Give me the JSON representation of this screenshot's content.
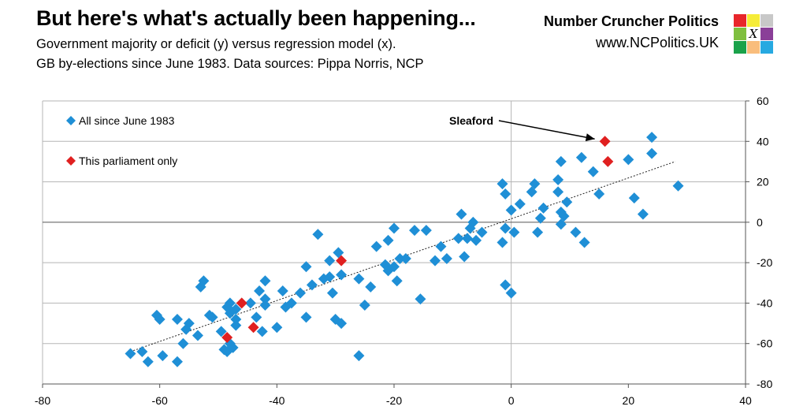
{
  "header": {
    "title": "But here's what's actually been happening...",
    "subtitle_line1": "Government majority or deficit (y) versus regression model (x).",
    "subtitle_line2": "GB by-elections since June 1983. Data sources: Pippa Norris, NCP",
    "brand_name": "Number Cruncher Politics",
    "brand_url": "www.NCPolitics.UK",
    "logo_letter": "X",
    "logo_colors": [
      "#e8262b",
      "#f5ec38",
      "#c8c8c8",
      "#7fbf3f",
      "#ffffff",
      "#8a3f98",
      "#1aa24a",
      "#f9bd7c",
      "#27a9e1"
    ]
  },
  "chart_data": {
    "type": "scatter",
    "xlim": [
      -80,
      40
    ],
    "ylim": [
      -80,
      60
    ],
    "xticks": [
      "-80",
      "-60",
      "-40",
      "-20",
      "0",
      "20",
      "40"
    ],
    "yticks": [
      "60",
      "40",
      "20",
      "0",
      "-20",
      "-40",
      "-60",
      "-80"
    ],
    "xtick_values": [
      -80,
      -60,
      -40,
      -20,
      0,
      20,
      40
    ],
    "ytick_values": [
      60,
      40,
      20,
      0,
      -20,
      -40,
      -60,
      -80
    ],
    "legend": [
      {
        "label": "All since June 1983",
        "color": "#1f8fd6"
      },
      {
        "label": "This parliament only",
        "color": "#e02020"
      }
    ],
    "annotation": {
      "label": "Sleaford",
      "target": [
        16,
        40
      ]
    },
    "trendline": {
      "x": [
        -65,
        28
      ],
      "y": [
        -64,
        30
      ]
    },
    "series": [
      {
        "name": "All since June 1983",
        "color": "#1f8fd6",
        "points": [
          [
            -65,
            -65
          ],
          [
            -63,
            -64
          ],
          [
            -62,
            -69
          ],
          [
            -60.5,
            -46
          ],
          [
            -60,
            -48
          ],
          [
            -59.5,
            -66
          ],
          [
            -57,
            -48
          ],
          [
            -57,
            -69
          ],
          [
            -56,
            -60
          ],
          [
            -55.5,
            -53
          ],
          [
            -55,
            -50
          ],
          [
            -53.5,
            -56
          ],
          [
            -53,
            -32
          ],
          [
            -52.5,
            -29
          ],
          [
            -51.5,
            -46
          ],
          [
            -51,
            -47
          ],
          [
            -49.5,
            -54
          ],
          [
            -49,
            -63
          ],
          [
            -48.5,
            -64
          ],
          [
            -48.5,
            -42
          ],
          [
            -48,
            -40
          ],
          [
            -48,
            -45
          ],
          [
            -48,
            -60
          ],
          [
            -47.5,
            -62
          ],
          [
            -47,
            -43
          ],
          [
            -47,
            -48
          ],
          [
            -47,
            -51
          ],
          [
            -44.5,
            -40
          ],
          [
            -43.5,
            -47
          ],
          [
            -43,
            -34
          ],
          [
            -42.5,
            -54
          ],
          [
            -42,
            -29
          ],
          [
            -42,
            -38
          ],
          [
            -42,
            -41
          ],
          [
            -40,
            -52
          ],
          [
            -39,
            -34
          ],
          [
            -38.5,
            -42
          ],
          [
            -37.5,
            -40
          ],
          [
            -36,
            -35
          ],
          [
            -35,
            -22
          ],
          [
            -35,
            -47
          ],
          [
            -34,
            -31
          ],
          [
            -33,
            -6
          ],
          [
            -32,
            -28
          ],
          [
            -31,
            -27
          ],
          [
            -31,
            -19
          ],
          [
            -30.5,
            -35
          ],
          [
            -30,
            -48
          ],
          [
            -29.5,
            -15
          ],
          [
            -29,
            -50
          ],
          [
            -29,
            -26
          ],
          [
            -26,
            -66
          ],
          [
            -26,
            -28
          ],
          [
            -25,
            -41
          ],
          [
            -24,
            -32
          ],
          [
            -23,
            -12
          ],
          [
            -21.5,
            -21
          ],
          [
            -21,
            -9
          ],
          [
            -21,
            -24
          ],
          [
            -20,
            -3
          ],
          [
            -20,
            -22
          ],
          [
            -19.5,
            -29
          ],
          [
            -19,
            -18
          ],
          [
            -18,
            -18
          ],
          [
            -16.5,
            -4
          ],
          [
            -15.5,
            -38
          ],
          [
            -14.5,
            -4
          ],
          [
            -13,
            -19
          ],
          [
            -12,
            -12
          ],
          [
            -11,
            -18
          ],
          [
            -9,
            -8
          ],
          [
            -8.5,
            4
          ],
          [
            -8,
            -17
          ],
          [
            -7.5,
            -8
          ],
          [
            -7,
            -3
          ],
          [
            -6.5,
            0
          ],
          [
            -6,
            -9
          ],
          [
            -5,
            -5
          ],
          [
            -1.5,
            19
          ],
          [
            -1.5,
            -10
          ],
          [
            -1,
            14
          ],
          [
            -1,
            -3
          ],
          [
            -1,
            -31
          ],
          [
            0,
            6
          ],
          [
            0,
            -35
          ],
          [
            0.5,
            -5
          ],
          [
            1.5,
            9
          ],
          [
            3.5,
            15
          ],
          [
            4,
            19
          ],
          [
            4.5,
            -5
          ],
          [
            5,
            2
          ],
          [
            5.5,
            7
          ],
          [
            8,
            15
          ],
          [
            8,
            21
          ],
          [
            8.5,
            5
          ],
          [
            8.5,
            -1
          ],
          [
            8.5,
            30
          ],
          [
            9,
            3
          ],
          [
            9.5,
            10
          ],
          [
            11,
            -5
          ],
          [
            12,
            32
          ],
          [
            12.5,
            -10
          ],
          [
            14,
            25
          ],
          [
            15,
            14
          ],
          [
            20,
            31
          ],
          [
            21,
            12
          ],
          [
            22.5,
            4
          ],
          [
            24,
            34
          ],
          [
            24,
            42
          ],
          [
            28.5,
            18
          ]
        ]
      },
      {
        "name": "This parliament only",
        "color": "#e02020",
        "points": [
          [
            -48.5,
            -57
          ],
          [
            -46,
            -40
          ],
          [
            -44,
            -52
          ],
          [
            -29,
            -19
          ],
          [
            16,
            40
          ],
          [
            16.5,
            30
          ]
        ]
      }
    ]
  }
}
